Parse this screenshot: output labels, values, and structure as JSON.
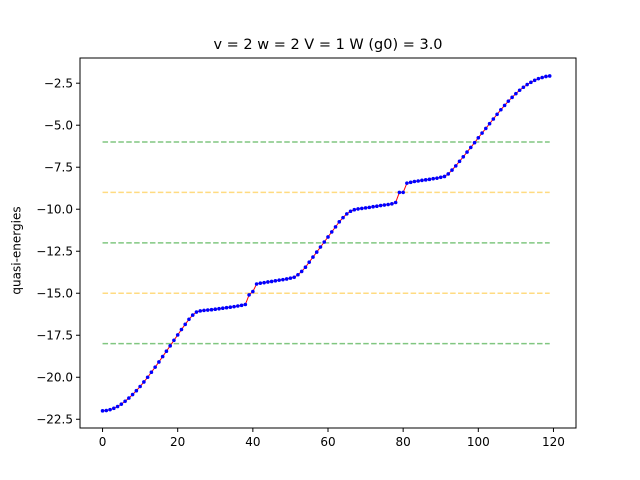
{
  "chart_data": {
    "type": "line",
    "title": "v = 2  w = 2  V = 1  W (g0) = 3.0",
    "xlabel": "",
    "ylabel": "quasi-energies",
    "xlim": [
      -6,
      126
    ],
    "ylim": [
      -23.02,
      -1.0
    ],
    "xticks": [
      0,
      20,
      40,
      60,
      80,
      100,
      120
    ],
    "yticks": [
      -22.5,
      -20.0,
      -17.5,
      -15.0,
      -12.5,
      -10.0,
      -7.5,
      -5.0,
      -2.5
    ],
    "xtick_labels": [
      "0",
      "20",
      "40",
      "60",
      "80",
      "100",
      "120"
    ],
    "ytick_labels": [
      "−22.5",
      "−20.0",
      "−17.5",
      "−15.0",
      "−12.5",
      "−10.0",
      "−7.5",
      "−5.0",
      "−2.5"
    ],
    "grid": false,
    "series": [
      {
        "style": "red line with blue dot markers",
        "line_color": "#ff0000",
        "marker_color": "#0000ff",
        "x": [
          0,
          1,
          2,
          3,
          4,
          5,
          6,
          7,
          8,
          9,
          10,
          11,
          12,
          13,
          14,
          15,
          16,
          17,
          18,
          19,
          20,
          21,
          22,
          23,
          24,
          25,
          26,
          27,
          28,
          29,
          30,
          31,
          32,
          33,
          34,
          35,
          36,
          37,
          38,
          39,
          40,
          41,
          42,
          43,
          44,
          45,
          46,
          47,
          48,
          49,
          50,
          51,
          52,
          53,
          54,
          55,
          56,
          57,
          58,
          59,
          60,
          61,
          62,
          63,
          64,
          65,
          66,
          67,
          68,
          69,
          70,
          71,
          72,
          73,
          74,
          75,
          76,
          77,
          78,
          79,
          80,
          81,
          82,
          83,
          84,
          85,
          86,
          87,
          88,
          89,
          90,
          91,
          92,
          93,
          94,
          95,
          96,
          97,
          98,
          99,
          100,
          101,
          102,
          103,
          104,
          105,
          106,
          107,
          108,
          109,
          110,
          111,
          112,
          113,
          114,
          115,
          116,
          117,
          118,
          119
        ],
        "y": [
          -22.0,
          -21.98,
          -21.93,
          -21.85,
          -21.74,
          -21.6,
          -21.43,
          -21.24,
          -21.03,
          -20.8,
          -20.55,
          -20.28,
          -20.0,
          -19.7,
          -19.4,
          -19.09,
          -18.77,
          -18.45,
          -18.13,
          -17.8,
          -17.48,
          -17.16,
          -16.85,
          -16.55,
          -16.3,
          -16.12,
          -16.05,
          -16.02,
          -16.0,
          -15.98,
          -15.95,
          -15.92,
          -15.89,
          -15.86,
          -15.83,
          -15.8,
          -15.76,
          -15.72,
          -15.67,
          -15.1,
          -14.9,
          -14.45,
          -14.4,
          -14.37,
          -14.33,
          -14.3,
          -14.26,
          -14.22,
          -14.19,
          -14.15,
          -14.1,
          -14.05,
          -13.9,
          -13.7,
          -13.45,
          -13.15,
          -12.85,
          -12.55,
          -12.25,
          -11.95,
          -11.65,
          -11.35,
          -11.05,
          -10.75,
          -10.5,
          -10.28,
          -10.12,
          -10.03,
          -9.98,
          -9.95,
          -9.92,
          -9.89,
          -9.85,
          -9.82,
          -9.78,
          -9.75,
          -9.72,
          -9.68,
          -9.6,
          -9.0,
          -9.0,
          -8.45,
          -8.4,
          -8.35,
          -8.32,
          -8.28,
          -8.25,
          -8.22,
          -8.18,
          -8.15,
          -8.1,
          -8.05,
          -7.9,
          -7.67,
          -7.42,
          -7.15,
          -6.88,
          -6.6,
          -6.32,
          -6.04,
          -5.75,
          -5.47,
          -5.19,
          -4.91,
          -4.63,
          -4.35,
          -4.08,
          -3.82,
          -3.57,
          -3.34,
          -3.12,
          -2.92,
          -2.74,
          -2.58,
          -2.45,
          -2.33,
          -2.23,
          -2.16,
          -2.1,
          -2.07
        ]
      }
    ],
    "reference_lines": [
      {
        "y": -6.0,
        "color": "#55b355",
        "style": "dashed"
      },
      {
        "y": -9.0,
        "color": "#ffcf57",
        "style": "dashed"
      },
      {
        "y": -12.0,
        "color": "#55b355",
        "style": "dashed"
      },
      {
        "y": -15.0,
        "color": "#ffcf57",
        "style": "dashed"
      },
      {
        "y": -18.0,
        "color": "#55b355",
        "style": "dashed"
      }
    ],
    "reference_xrange": [
      0,
      119
    ]
  }
}
